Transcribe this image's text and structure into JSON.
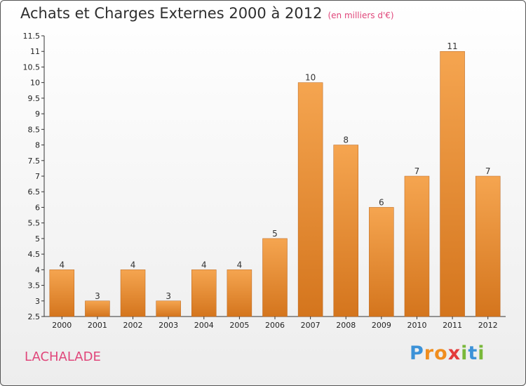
{
  "header": {
    "title": "Achats et Charges Externes 2000 à 2012",
    "unit": "(en milliers d'€)"
  },
  "footer": {
    "commune": "LACHALADE",
    "logo": "Proxiti"
  },
  "colors": {
    "bar_light": "#f5a550",
    "bar_dark": "#d4751d",
    "title": "#2e2e2e",
    "accent": "#e0467a"
  },
  "logo_letters": [
    {
      "ch": "P",
      "color": "#3c92d8"
    },
    {
      "ch": "r",
      "color": "#f08d1e"
    },
    {
      "ch": "o",
      "color": "#f08d1e"
    },
    {
      "ch": "x",
      "color": "#e33b3b"
    },
    {
      "ch": "i",
      "color": "#79b83a"
    },
    {
      "ch": "t",
      "color": "#3c92d8"
    },
    {
      "ch": "i",
      "color": "#79b83a"
    }
  ],
  "chart_data": {
    "type": "bar",
    "title": "Achats et Charges Externes 2000 à 2012",
    "subtitle": "(en milliers d'€)",
    "categories": [
      "2000",
      "2001",
      "2002",
      "2003",
      "2004",
      "2005",
      "2006",
      "2007",
      "2008",
      "2009",
      "2010",
      "2011",
      "2012"
    ],
    "values": [
      4,
      3,
      4,
      3,
      4,
      4,
      5,
      10,
      8,
      6,
      7,
      11,
      7
    ],
    "data_labels": [
      "4",
      "3",
      "4",
      "3",
      "4",
      "4",
      "5",
      "10",
      "8",
      "6",
      "7",
      "11",
      "7"
    ],
    "ylim": [
      2.5,
      11.5
    ],
    "yticks": [
      2.5,
      3,
      3.5,
      4,
      4.5,
      5,
      5.5,
      6,
      6.5,
      7,
      7.5,
      8,
      8.5,
      9,
      9.5,
      10,
      10.5,
      11,
      11.5
    ],
    "ytick_labels": [
      "2.5",
      "3",
      "3.5",
      "4",
      "4.5",
      "5",
      "5.5",
      "6",
      "6.5",
      "7",
      "7.5",
      "8",
      "8.5",
      "9",
      "9.5",
      "10",
      "10.5",
      "11",
      "11.5"
    ],
    "grid": false,
    "legend": "none"
  }
}
